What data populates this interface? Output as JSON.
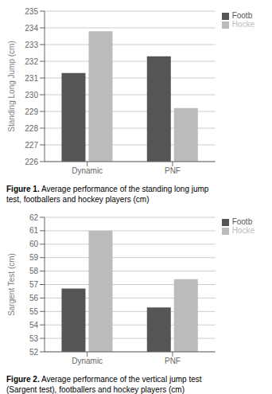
{
  "chart_data": [
    {
      "type": "bar",
      "categories": [
        "Dynamic",
        "PNF"
      ],
      "series": [
        {
          "name": "Footb",
          "color": "#555555",
          "values": [
            231.3,
            232.3
          ]
        },
        {
          "name": "Hocke",
          "color": "#bbbbbb",
          "values": [
            233.8,
            229.2
          ]
        }
      ],
      "ylabel": "Standing Long Jump (cm)",
      "ylim": [
        226,
        235
      ],
      "yticks": [
        226,
        227,
        228,
        229,
        230,
        231,
        232,
        233,
        234,
        235
      ],
      "grid": true,
      "legend": "right",
      "annotations": [
        "Figure 1. Average performance of the standing long jump",
        "test, footballers and hockey players (cm)"
      ]
    },
    {
      "type": "bar",
      "categories": [
        "Dynamic",
        "PNF"
      ],
      "series": [
        {
          "name": "Footb",
          "color": "#555555",
          "values": [
            56.7,
            55.3
          ]
        },
        {
          "name": "Hocke",
          "color": "#bbbbbb",
          "values": [
            61.0,
            57.4
          ]
        }
      ],
      "ylabel": "Sargent Test (cm)",
      "ylim": [
        52,
        62
      ],
      "yticks": [
        52,
        53,
        54,
        55,
        56,
        57,
        58,
        59,
        60,
        61,
        62
      ],
      "grid": true,
      "legend": "right",
      "annotations": [
        "Figure 2. Average performance of the vertical jump test",
        "(Sargent test), footballers and hockey players (cm)"
      ]
    }
  ]
}
